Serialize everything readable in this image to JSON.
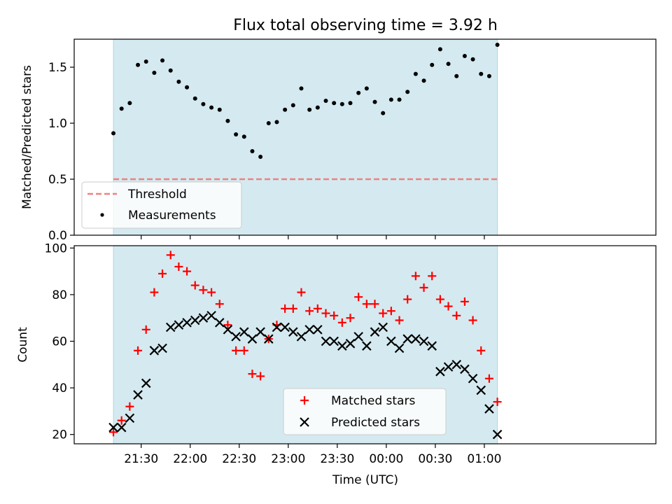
{
  "figure": {
    "title": "Flux total observing time = 3.92 h",
    "xlabel": "Time (UTC)"
  },
  "colors": {
    "observing_band": "#d4eaf0",
    "observing_band_edge": "#add8e6",
    "threshold": "#f08080",
    "measurements": "#000000",
    "matched": "#ff0000",
    "predicted": "#000000"
  },
  "chart_data": [
    {
      "type": "scatter",
      "panel": "top",
      "ylabel": "Matched/Predicted stars",
      "ylim": [
        0.0,
        1.75
      ],
      "y_ticks": [
        0.0,
        0.5,
        1.0,
        1.5
      ],
      "y_tick_labels": [
        "0.0",
        "0.5",
        "1.0",
        "1.5"
      ],
      "x_unit": "minutes after 21:00 UTC",
      "xlim": [
        -11,
        345
      ],
      "observing_window": [
        13,
        248
      ],
      "legend": {
        "placement": "lower-left",
        "entries": [
          "Threshold",
          "Measurements"
        ]
      },
      "threshold": {
        "name": "Threshold",
        "value": 0.5,
        "x_range": [
          13,
          248
        ]
      },
      "series": [
        {
          "name": "Measurements",
          "marker": "dot",
          "x": [
            13,
            18,
            23,
            28,
            33,
            38,
            43,
            48,
            53,
            58,
            63,
            68,
            73,
            78,
            83,
            88,
            93,
            98,
            103,
            108,
            113,
            118,
            123,
            128,
            133,
            138,
            143,
            148,
            153,
            158,
            163,
            168,
            173,
            178,
            183,
            188,
            193,
            198,
            203,
            208,
            213,
            218,
            223,
            228,
            233,
            238,
            243,
            248
          ],
          "y": [
            0.91,
            1.13,
            1.18,
            1.52,
            1.55,
            1.45,
            1.56,
            1.47,
            1.37,
            1.32,
            1.22,
            1.17,
            1.14,
            1.12,
            1.02,
            0.9,
            0.88,
            0.75,
            0.7,
            1.0,
            1.01,
            1.12,
            1.16,
            1.31,
            1.12,
            1.14,
            1.2,
            1.18,
            1.17,
            1.18,
            1.27,
            1.31,
            1.19,
            1.09,
            1.21,
            1.21,
            1.28,
            1.44,
            1.38,
            1.52,
            1.66,
            1.53,
            1.42,
            1.6,
            1.57,
            1.44,
            1.42,
            1.7
          ]
        }
      ]
    },
    {
      "type": "scatter",
      "panel": "bottom",
      "ylabel": "Count",
      "ylim": [
        16,
        101
      ],
      "y_ticks": [
        20,
        40,
        60,
        80,
        100
      ],
      "y_tick_labels": [
        "20",
        "40",
        "60",
        "80",
        "100"
      ],
      "x_unit": "minutes after 21:00 UTC",
      "xlim": [
        -11,
        345
      ],
      "x_ticks": [
        30,
        60,
        90,
        120,
        150,
        180,
        210,
        240
      ],
      "x_tick_labels": [
        "21:30",
        "22:00",
        "22:30",
        "23:00",
        "23:30",
        "00:00",
        "00:30",
        "01:00"
      ],
      "observing_window": [
        13,
        248
      ],
      "legend": {
        "placement": "lower-center",
        "entries": [
          "Matched stars",
          "Predicted stars"
        ]
      },
      "series": [
        {
          "name": "Matched stars",
          "marker": "plus",
          "x": [
            13,
            18,
            23,
            28,
            33,
            38,
            43,
            48,
            53,
            58,
            63,
            68,
            73,
            78,
            83,
            88,
            93,
            98,
            103,
            108,
            113,
            118,
            123,
            128,
            133,
            138,
            143,
            148,
            153,
            158,
            163,
            168,
            173,
            178,
            183,
            188,
            193,
            198,
            203,
            208,
            213,
            218,
            223,
            228,
            233,
            238,
            243,
            248
          ],
          "y": [
            21,
            26,
            32,
            56,
            65,
            81,
            89,
            97,
            92,
            90,
            84,
            82,
            81,
            76,
            67,
            56,
            56,
            46,
            45,
            61,
            67,
            74,
            74,
            81,
            73,
            74,
            72,
            71,
            68,
            70,
            79,
            76,
            76,
            72,
            73,
            69,
            78,
            88,
            83,
            88,
            78,
            75,
            71,
            77,
            69,
            56,
            44,
            34
          ]
        },
        {
          "name": "Predicted stars",
          "marker": "x",
          "x": [
            13,
            18,
            23,
            28,
            33,
            38,
            43,
            48,
            53,
            58,
            63,
            68,
            73,
            78,
            83,
            88,
            93,
            98,
            103,
            108,
            113,
            118,
            123,
            128,
            133,
            138,
            143,
            148,
            153,
            158,
            163,
            168,
            173,
            178,
            183,
            188,
            193,
            198,
            203,
            208,
            213,
            218,
            223,
            228,
            233,
            238,
            243,
            248
          ],
          "y": [
            23,
            23,
            27,
            37,
            42,
            56,
            57,
            66,
            67,
            68,
            69,
            70,
            71,
            68,
            65,
            62,
            64,
            61,
            64,
            61,
            66,
            66,
            64,
            62,
            65,
            65,
            60,
            60,
            58,
            59,
            62,
            58,
            64,
            66,
            60,
            57,
            61,
            61,
            60,
            58,
            47,
            49,
            50,
            48,
            44,
            39,
            31,
            20
          ]
        }
      ]
    }
  ]
}
